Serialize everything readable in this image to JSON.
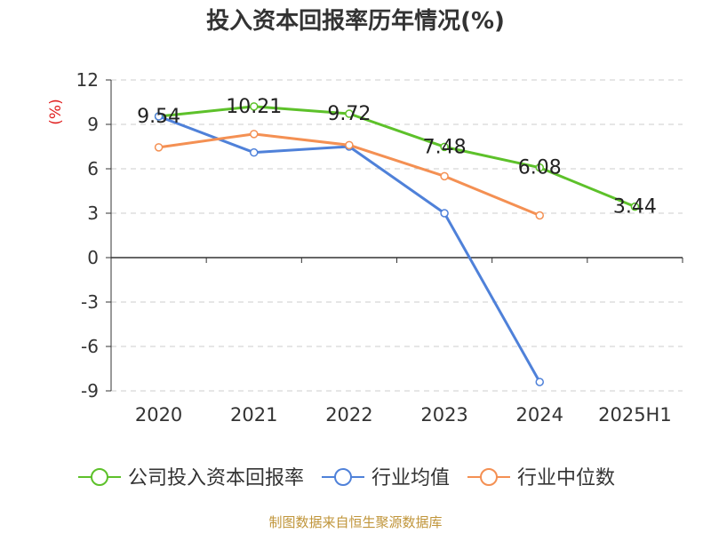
{
  "chart_data": {
    "type": "line",
    "title": "投入资本回报率历年情况(%)",
    "ylabel": "(%)",
    "categories": [
      "2020",
      "2021",
      "2022",
      "2023",
      "2024",
      "2025H1"
    ],
    "ylim": [
      -9,
      12
    ],
    "yticks": [
      12,
      9,
      6,
      3,
      0,
      -3,
      -6,
      -9
    ],
    "grid": true,
    "legend_position": "bottom",
    "series": [
      {
        "name": "公司投入资本回报率",
        "color": "#5dc12a",
        "values": [
          9.54,
          10.21,
          9.72,
          7.48,
          6.08,
          3.44
        ],
        "show_labels": true
      },
      {
        "name": "行业均值",
        "color": "#4f81d9",
        "values": [
          9.54,
          7.1,
          7.5,
          3.0,
          -8.4,
          null
        ],
        "show_labels": false
      },
      {
        "name": "行业中位数",
        "color": "#f49053",
        "values": [
          7.45,
          8.35,
          7.6,
          5.5,
          2.85,
          null
        ],
        "show_labels": false
      }
    ]
  },
  "source_text": "制图数据来自恒生聚源数据库"
}
